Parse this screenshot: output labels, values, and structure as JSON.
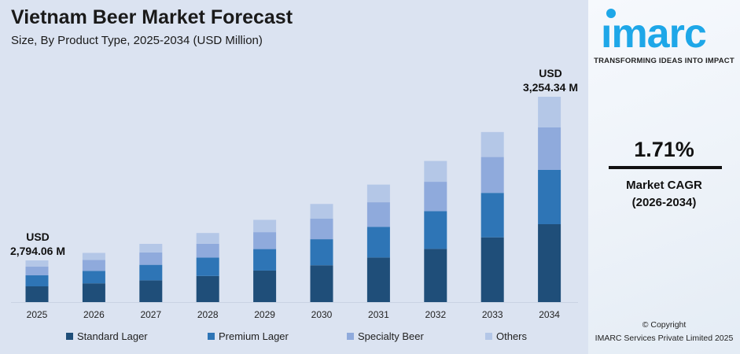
{
  "header": {
    "title": "Vietnam Beer Market Forecast",
    "subtitle": "Size, By Product Type, 2025-2034 (USD Million)"
  },
  "chart_data": {
    "type": "bar",
    "stacked": true,
    "title": "Vietnam Beer Market Forecast",
    "subtitle": "Size, By Product Type, 2025-2034 (USD Million)",
    "categories": [
      "2025",
      "2026",
      "2027",
      "2028",
      "2029",
      "2030",
      "2031",
      "2032",
      "2033",
      "2034"
    ],
    "totals": [
      2794.06,
      2841.8,
      2890.4,
      2939.8,
      2990.1,
      3041.2,
      3093.2,
      3146.1,
      3199.9,
      3254.34
    ],
    "series": [
      {
        "name": "Standard Lager",
        "color": "#1f4e79",
        "values": [
          1054.4,
          1082.6,
          1079.1,
          1110.6,
          1145.7,
          1140.5,
          1172.6,
          1186.3,
          1218.3,
          1234.4
        ]
      },
      {
        "name": "Premium Lager",
        "color": "#2e75b6",
        "values": [
          738.1,
          721.7,
          770.8,
          784.0,
          782.5,
          807.8,
          808.7,
          842.4,
          836.7,
          860.3
        ]
      },
      {
        "name": "Specialty Beer",
        "color": "#8faadc",
        "values": [
          579.9,
          631.5,
          616.6,
          588.0,
          614.8,
          641.5,
          646.9,
          653.3,
          675.2,
          673.3
        ]
      },
      {
        "name": "Others",
        "color": "#b4c7e7",
        "values": [
          421.7,
          406.0,
          423.9,
          457.3,
          447.1,
          451.4,
          465.0,
          464.2,
          469.7,
          486.3
        ]
      }
    ],
    "annotations": [
      {
        "line1": "USD",
        "line2": "2,794.06 M"
      },
      {
        "line1": "USD",
        "line2": "3,254.34 M"
      }
    ],
    "legend_position": "bottom",
    "grid": false
  },
  "panel": {
    "logo": "imarc",
    "tagline": "TRANSFORMING IDEAS INTO IMPACT",
    "cagr_value": "1.71%",
    "cagr_label": "Market CAGR",
    "cagr_period": "(2026-2034)",
    "copyright": "© Copyright",
    "company": "IMARC Services Private Limited 2025",
    "brand_color": "#1ea7e8"
  }
}
